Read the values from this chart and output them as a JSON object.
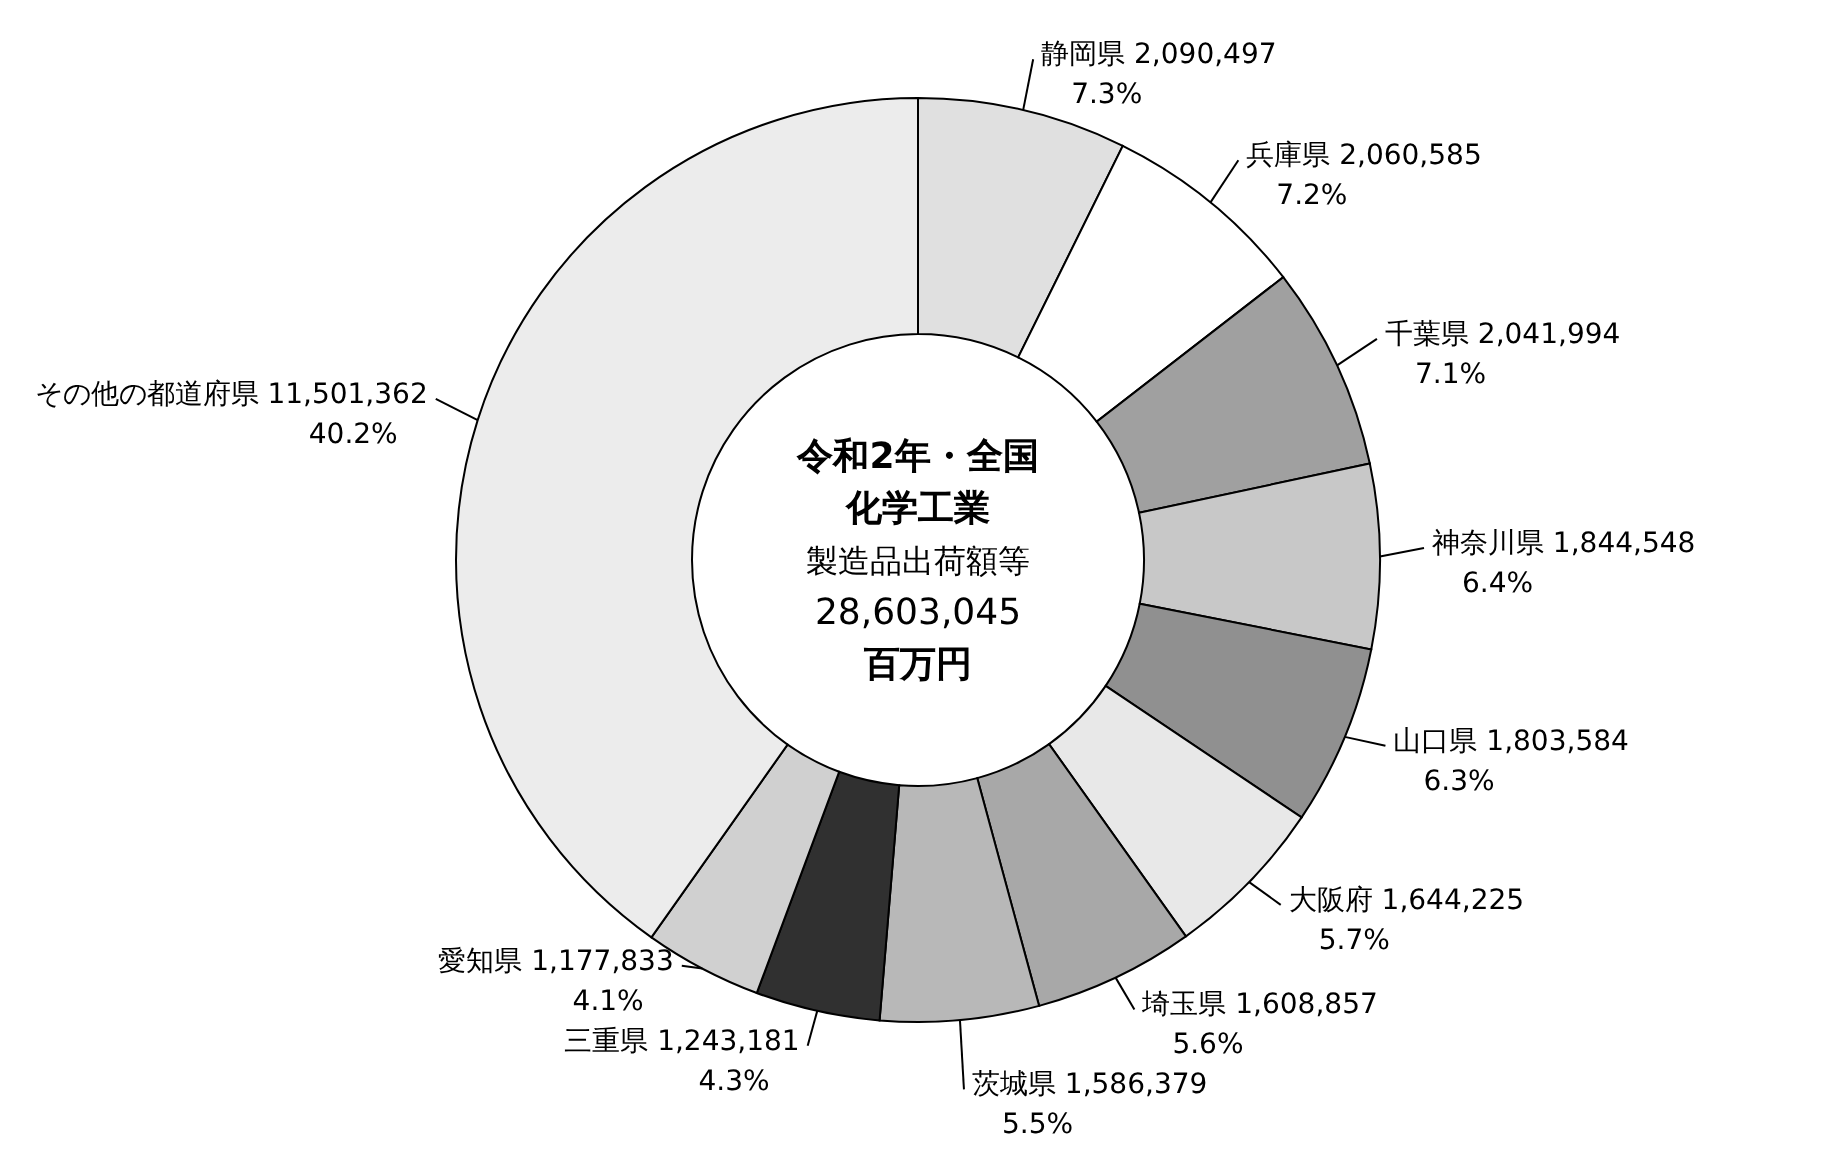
{
  "chart_data": {
    "type": "donut",
    "title": "令和2年・全国",
    "subtitle": "化学工業",
    "annotations": [
      "製造品出荷額等",
      "28,603,045",
      "百万円"
    ],
    "categories": [
      "静岡県",
      "兵庫県",
      "千葉県",
      "神奈川県",
      "山口県",
      "大阪府",
      "埼玉県",
      "茨城県",
      "三重県",
      "愛知県",
      "その他の都道府県"
    ],
    "values": [
      2090497,
      2060585,
      2041994,
      1844548,
      1803584,
      1644225,
      1608857,
      1586379,
      1243181,
      1177833,
      11501362
    ],
    "value_labels": [
      "2,090,497\n7.3%",
      "2,060,585\n7.2%",
      "2,041,994\n7.1%",
      "1,844,548\n6.4%",
      "1,803,584\n6.3%",
      "1,644,225\n5.7%",
      "1,608,857\n5.6%",
      "1,586,379\n5.5%",
      "1,243,181\n4.3%",
      "1,177,833\n4.1%",
      "11,501,362\n40.2%"
    ],
    "colors": [
      "#e0e0e0",
      "#ffffff",
      "#a0a0a0",
      "#c8c8c8",
      "#909090",
      "#e8e8e8",
      "#a8a8a8",
      "#b8b8b8",
      "#303030",
      "#d0d0d0",
      "#ececec"
    ]
  }
}
